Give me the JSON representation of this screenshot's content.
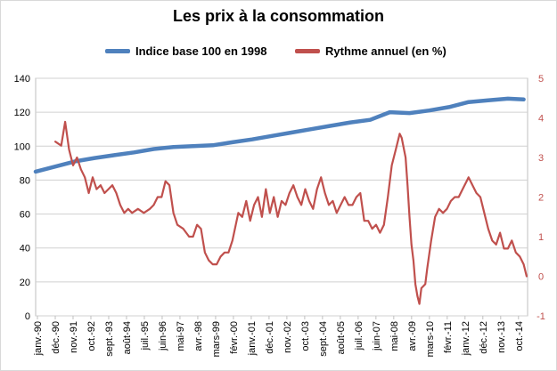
{
  "chart_data": {
    "type": "line",
    "title": "Les prix à la consommation",
    "legend_position": "top",
    "grid": true,
    "xlabel": "",
    "ylabel": "",
    "x_categories": [
      "janv.-90",
      "déc.-90",
      "nov.-91",
      "oct.-92",
      "sept.-93",
      "août-94",
      "juil.-95",
      "juin-96",
      "mai-97",
      "avr.-98",
      "mars-99",
      "févr.-00",
      "janv.-01",
      "déc.-01",
      "nov.-02",
      "oct.-03",
      "sept.-04",
      "août-05",
      "juil.-06",
      "juin-07",
      "mai-08",
      "avr.-09",
      "mars-10",
      "févr.-11",
      "janv.-12",
      "déc.-12",
      "nov.-13",
      "oct.-14"
    ],
    "y_left": {
      "min": 0,
      "max": 140,
      "ticks": [
        "0",
        "20",
        "40",
        "60",
        "80",
        "100",
        "120",
        "140"
      ]
    },
    "y_right": {
      "min": -1,
      "max": 5,
      "ticks": [
        "-1",
        "0",
        "1",
        "2",
        "3",
        "4",
        "5"
      ]
    },
    "series": [
      {
        "name": "Indice base 100 en 1998",
        "axis": "left",
        "color": "#4f81bd",
        "points": [
          [
            1990.0,
            85
          ],
          [
            1991.0,
            88
          ],
          [
            1992.0,
            91
          ],
          [
            1993.0,
            93
          ],
          [
            1994.0,
            94.7
          ],
          [
            1995.0,
            96.3
          ],
          [
            1996.0,
            98.3
          ],
          [
            1997.0,
            99.5
          ],
          [
            1998.0,
            100
          ],
          [
            1999.0,
            100.5
          ],
          [
            2000.0,
            102.3
          ],
          [
            2001.0,
            104
          ],
          [
            2002.0,
            106
          ],
          [
            2003.0,
            108
          ],
          [
            2004.0,
            110
          ],
          [
            2005.0,
            112
          ],
          [
            2006.0,
            114
          ],
          [
            2007.0,
            115.5
          ],
          [
            2008.0,
            120
          ],
          [
            2009.0,
            119.5
          ],
          [
            2010.0,
            121
          ],
          [
            2011.0,
            123
          ],
          [
            2012.0,
            126
          ],
          [
            2013.0,
            127
          ],
          [
            2014.0,
            128
          ],
          [
            2014.8,
            127.5
          ]
        ]
      },
      {
        "name": "Rythme annuel (en %)",
        "axis": "right",
        "color": "#c0504d",
        "points": [
          [
            1991.0,
            3.4
          ],
          [
            1991.3,
            3.3
          ],
          [
            1991.5,
            3.9
          ],
          [
            1991.7,
            3.2
          ],
          [
            1991.9,
            2.8
          ],
          [
            1992.1,
            3.0
          ],
          [
            1992.3,
            2.7
          ],
          [
            1992.5,
            2.5
          ],
          [
            1992.7,
            2.1
          ],
          [
            1992.9,
            2.5
          ],
          [
            1993.1,
            2.2
          ],
          [
            1993.3,
            2.3
          ],
          [
            1993.5,
            2.1
          ],
          [
            1993.7,
            2.2
          ],
          [
            1993.9,
            2.3
          ],
          [
            1994.1,
            2.1
          ],
          [
            1994.3,
            1.8
          ],
          [
            1994.5,
            1.6
          ],
          [
            1994.7,
            1.7
          ],
          [
            1994.9,
            1.6
          ],
          [
            1995.2,
            1.7
          ],
          [
            1995.5,
            1.6
          ],
          [
            1995.8,
            1.7
          ],
          [
            1996.0,
            1.8
          ],
          [
            1996.2,
            2.0
          ],
          [
            1996.4,
            2.0
          ],
          [
            1996.6,
            2.4
          ],
          [
            1996.8,
            2.3
          ],
          [
            1997.0,
            1.6
          ],
          [
            1997.2,
            1.3
          ],
          [
            1997.5,
            1.2
          ],
          [
            1997.8,
            1.0
          ],
          [
            1998.0,
            1.0
          ],
          [
            1998.2,
            1.3
          ],
          [
            1998.4,
            1.2
          ],
          [
            1998.6,
            0.6
          ],
          [
            1998.8,
            0.4
          ],
          [
            1999.0,
            0.3
          ],
          [
            1999.2,
            0.3
          ],
          [
            1999.4,
            0.5
          ],
          [
            1999.6,
            0.6
          ],
          [
            1999.8,
            0.6
          ],
          [
            2000.0,
            0.9
          ],
          [
            2000.3,
            1.6
          ],
          [
            2000.5,
            1.5
          ],
          [
            2000.7,
            1.9
          ],
          [
            2000.9,
            1.4
          ],
          [
            2001.1,
            1.8
          ],
          [
            2001.3,
            2.0
          ],
          [
            2001.5,
            1.5
          ],
          [
            2001.7,
            2.2
          ],
          [
            2001.9,
            1.6
          ],
          [
            2002.1,
            2.0
          ],
          [
            2002.3,
            1.5
          ],
          [
            2002.5,
            1.9
          ],
          [
            2002.7,
            1.8
          ],
          [
            2002.9,
            2.1
          ],
          [
            2003.1,
            2.3
          ],
          [
            2003.3,
            2.0
          ],
          [
            2003.5,
            1.8
          ],
          [
            2003.7,
            2.2
          ],
          [
            2003.9,
            1.9
          ],
          [
            2004.1,
            1.7
          ],
          [
            2004.3,
            2.2
          ],
          [
            2004.5,
            2.5
          ],
          [
            2004.7,
            2.1
          ],
          [
            2004.9,
            1.8
          ],
          [
            2005.1,
            1.9
          ],
          [
            2005.3,
            1.6
          ],
          [
            2005.5,
            1.8
          ],
          [
            2005.7,
            2.0
          ],
          [
            2005.9,
            1.8
          ],
          [
            2006.1,
            1.8
          ],
          [
            2006.3,
            2.0
          ],
          [
            2006.5,
            2.1
          ],
          [
            2006.7,
            1.4
          ],
          [
            2006.9,
            1.4
          ],
          [
            2007.1,
            1.2
          ],
          [
            2007.3,
            1.3
          ],
          [
            2007.5,
            1.1
          ],
          [
            2007.7,
            1.3
          ],
          [
            2007.9,
            2.0
          ],
          [
            2008.1,
            2.8
          ],
          [
            2008.3,
            3.2
          ],
          [
            2008.5,
            3.6
          ],
          [
            2008.6,
            3.5
          ],
          [
            2008.8,
            3.0
          ],
          [
            2008.9,
            2.3
          ],
          [
            2009.0,
            1.5
          ],
          [
            2009.1,
            0.8
          ],
          [
            2009.2,
            0.4
          ],
          [
            2009.3,
            -0.2
          ],
          [
            2009.4,
            -0.5
          ],
          [
            2009.5,
            -0.7
          ],
          [
            2009.6,
            -0.3
          ],
          [
            2009.8,
            -0.2
          ],
          [
            2009.9,
            0.2
          ],
          [
            2010.1,
            0.9
          ],
          [
            2010.3,
            1.5
          ],
          [
            2010.5,
            1.7
          ],
          [
            2010.7,
            1.6
          ],
          [
            2010.9,
            1.7
          ],
          [
            2011.1,
            1.9
          ],
          [
            2011.3,
            2.0
          ],
          [
            2011.5,
            2.0
          ],
          [
            2011.7,
            2.2
          ],
          [
            2011.9,
            2.4
          ],
          [
            2012.0,
            2.5
          ],
          [
            2012.2,
            2.3
          ],
          [
            2012.4,
            2.1
          ],
          [
            2012.6,
            2.0
          ],
          [
            2012.8,
            1.6
          ],
          [
            2013.0,
            1.2
          ],
          [
            2013.2,
            0.9
          ],
          [
            2013.4,
            0.8
          ],
          [
            2013.6,
            1.1
          ],
          [
            2013.8,
            0.7
          ],
          [
            2014.0,
            0.7
          ],
          [
            2014.2,
            0.9
          ],
          [
            2014.4,
            0.6
          ],
          [
            2014.6,
            0.5
          ],
          [
            2014.8,
            0.3
          ],
          [
            2014.95,
            0.0
          ]
        ]
      }
    ]
  }
}
